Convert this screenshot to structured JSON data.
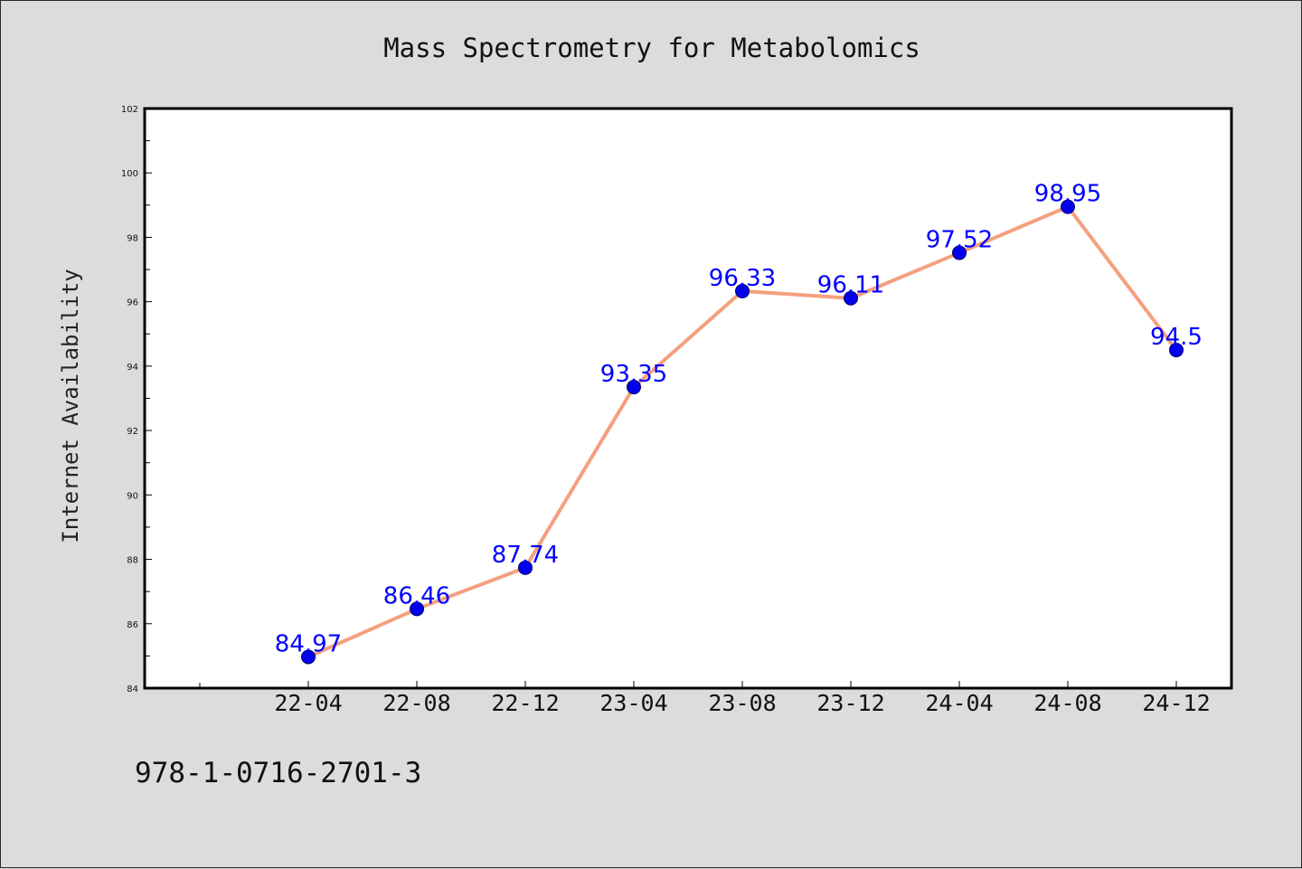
{
  "chart_data": {
    "type": "line",
    "title": "Mass Spectrometry for Metabolomics",
    "xlabel": "",
    "ylabel": "Internet Availability",
    "categories": [
      "22-04",
      "22-08",
      "22-12",
      "23-04",
      "23-08",
      "23-12",
      "24-04",
      "24-08",
      "24-12"
    ],
    "series": [
      {
        "values": [
          84.97,
          86.46,
          87.74,
          93.35,
          96.33,
          96.11,
          97.52,
          98.95,
          94.5
        ],
        "labels": [
          "84.97",
          "86.46",
          "87.74",
          "93.35",
          "96.33",
          "96.11",
          "97.52",
          "98.95",
          "94.5"
        ],
        "line_color": "#f4a07e",
        "marker_color": "#0000ee",
        "label_color": "#0000ff"
      }
    ],
    "ylim": [
      84,
      102
    ],
    "yticks": [
      "84",
      "86",
      "88",
      "90",
      "92",
      "94",
      "96",
      "98",
      "100",
      "102"
    ],
    "grid": false,
    "legend": "none"
  },
  "footer": {
    "isbn": "978-1-0716-2701-3"
  }
}
